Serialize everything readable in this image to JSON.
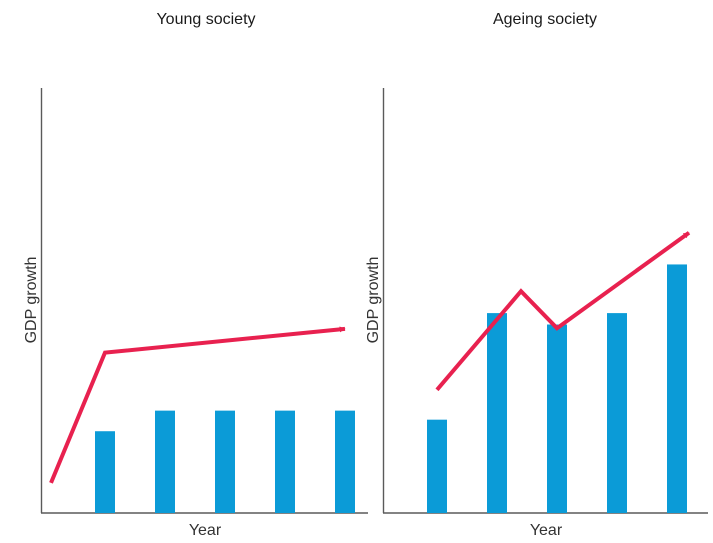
{
  "colors": {
    "bar": "#0b9bd7",
    "trend": "#e8214f",
    "axis": "#5a5a5a",
    "text": "#1a1a1a"
  },
  "chart_data": [
    {
      "type": "bar",
      "title": "Young society",
      "xlabel": "Year",
      "ylabel": "GDP growth",
      "categories": [
        "",
        "",
        "",
        "",
        ""
      ],
      "values": [
        28.2,
        35.3,
        35.3,
        35.3,
        35.3
      ],
      "ylim": [
        0,
        100
      ],
      "grid": false,
      "trend_arrow": {
        "x": [
          -0.9,
          0,
          4
        ],
        "y": [
          10.4,
          55.3,
          63.5
        ]
      }
    },
    {
      "type": "bar",
      "title": "Ageing society",
      "xlabel": "Year",
      "ylabel": "GDP growth",
      "categories": [
        "",
        "",
        "",
        "",
        ""
      ],
      "values": [
        30.3,
        64.9,
        61.2,
        64.9,
        80.7
      ],
      "ylim": [
        0,
        100
      ],
      "grid": false,
      "trend_arrow": {
        "x": [
          0,
          1.4,
          2,
          4.2
        ],
        "y": [
          40.0,
          72.0,
          60.0,
          91.0
        ]
      }
    }
  ]
}
